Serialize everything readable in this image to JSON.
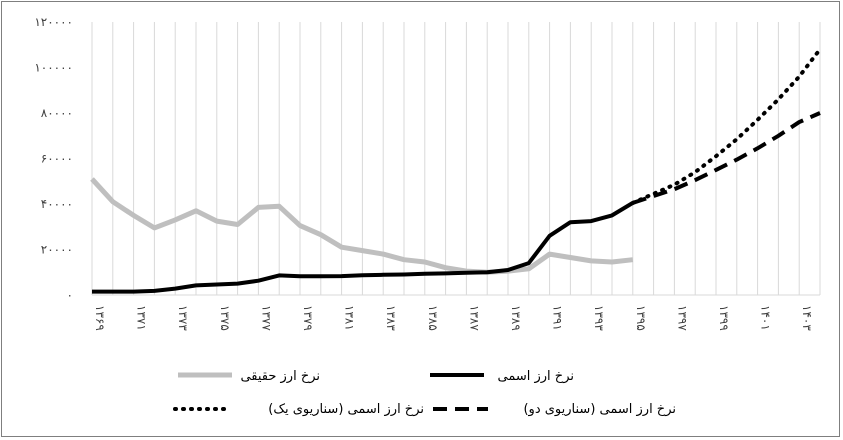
{
  "chart_data": {
    "type": "line",
    "title": "",
    "xlabel": "",
    "ylabel": "",
    "ylim": [
      0,
      120000
    ],
    "yticks": [
      0,
      20000,
      40000,
      60000,
      80000,
      100000,
      120000
    ],
    "ytick_labels": [
      "۰",
      "۲۰۰۰۰",
      "۴۰۰۰۰",
      "۶۰۰۰۰",
      "۸۰۰۰۰",
      "۱۰۰۰۰۰",
      "۱۲۰۰۰۰"
    ],
    "x": [
      1369,
      1370,
      1371,
      1372,
      1373,
      1374,
      1375,
      1376,
      1377,
      1378,
      1379,
      1380,
      1381,
      1382,
      1383,
      1384,
      1385,
      1386,
      1387,
      1388,
      1389,
      1390,
      1391,
      1392,
      1393,
      1394,
      1395,
      1396,
      1397,
      1398,
      1399,
      1400,
      1401,
      1402,
      1403,
      1404
    ],
    "xtick_labels": [
      "۱۳۶۹",
      "۱۳۷۱",
      "۱۳۷۳",
      "۱۳۷۵",
      "۱۳۷۷",
      "۱۳۷۹",
      "۱۳۸۱",
      "۱۳۸۳",
      "۱۳۸۵",
      "۱۳۸۷",
      "۱۳۸۹",
      "۱۳۹۱",
      "۱۳۹۳",
      "۱۳۹۵",
      "۱۳۹۷",
      "۱۳۹۹",
      "۱۴۰۱",
      "۱۴۰۳"
    ],
    "xtick_years": [
      1369,
      1371,
      1373,
      1375,
      1377,
      1379,
      1381,
      1383,
      1385,
      1387,
      1389,
      1391,
      1393,
      1395,
      1397,
      1399,
      1401,
      1403
    ],
    "grid": "vertical",
    "legend_position": "bottom",
    "series": [
      {
        "name": "نرخ ارز حقیقی",
        "color": "#bfbfbf",
        "style": "solid",
        "x": [
          1369,
          1370,
          1371,
          1372,
          1373,
          1374,
          1375,
          1376,
          1377,
          1378,
          1379,
          1380,
          1381,
          1382,
          1383,
          1384,
          1385,
          1386,
          1387,
          1388,
          1389,
          1390,
          1391,
          1392,
          1393,
          1394,
          1395
        ],
        "values": [
          51000,
          41000,
          35000,
          29500,
          33000,
          37000,
          32500,
          31000,
          38500,
          39000,
          30500,
          26500,
          21000,
          19500,
          18000,
          15500,
          14500,
          12000,
          10500,
          10000,
          10500,
          11500,
          18000,
          16500,
          15000,
          14500,
          15500
        ]
      },
      {
        "name": "نرخ ارز اسمی",
        "color": "#000000",
        "style": "solid",
        "x": [
          1369,
          1370,
          1371,
          1372,
          1373,
          1374,
          1375,
          1376,
          1377,
          1378,
          1379,
          1380,
          1381,
          1382,
          1383,
          1384,
          1385,
          1386,
          1387,
          1388,
          1389,
          1390,
          1391,
          1392,
          1393,
          1394,
          1395
        ],
        "values": [
          1500,
          1500,
          1500,
          1800,
          2800,
          4200,
          4600,
          5000,
          6300,
          8600,
          8200,
          8200,
          8300,
          8700,
          8900,
          9000,
          9300,
          9500,
          9800,
          10000,
          11000,
          14000,
          26000,
          32000,
          32500,
          35000,
          40500
        ]
      },
      {
        "name": "نرخ ارز اسمی (سناریوی یک)",
        "color": "#000000",
        "style": "dotted",
        "x": [
          1395,
          1396,
          1397,
          1398,
          1399,
          1400,
          1401,
          1402,
          1403,
          1404
        ],
        "values": [
          40500,
          44500,
          48500,
          54000,
          61000,
          68500,
          77000,
          86000,
          96000,
          108000
        ]
      },
      {
        "name": "نرخ ارز اسمی (سناریوی دو)",
        "color": "#000000",
        "style": "dashed",
        "x": [
          1395,
          1396,
          1397,
          1398,
          1399,
          1400,
          1401,
          1402,
          1403,
          1404
        ],
        "values": [
          40500,
          43500,
          46500,
          50500,
          55000,
          59500,
          64500,
          70000,
          76000,
          80000
        ]
      }
    ]
  }
}
